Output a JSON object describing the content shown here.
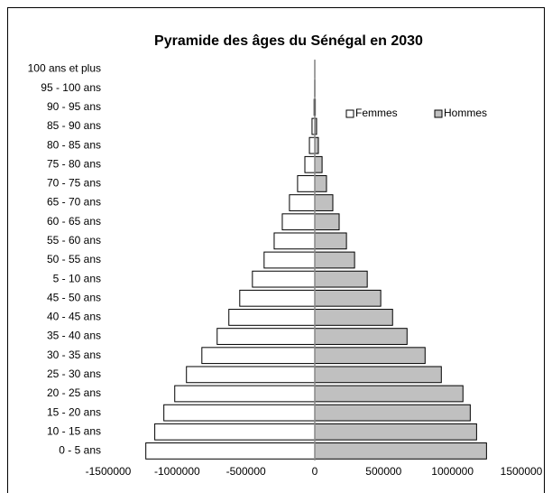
{
  "chart_data": {
    "type": "bar",
    "orientation": "horizontal",
    "title": "Pyramide des âges du Sénégal en 2030",
    "categories": [
      "0 - 5 ans",
      "10 - 15 ans",
      "15 - 20 ans",
      "20 - 25 ans",
      "25 - 30 ans",
      "30 - 35 ans",
      "35 - 40 ans",
      "40 - 45 ans",
      "45 - 50 ans",
      "5 - 10 ans",
      "50 - 55 ans",
      "55 - 60 ans",
      "60 - 65 ans",
      "65 - 70 ans",
      "70 - 75 ans",
      "75 - 80 ans",
      "80 - 85 ans",
      "85 - 90 ans",
      "90 - 95 ans",
      "95 - 100 ans",
      "100 ans et plus"
    ],
    "series": [
      {
        "name": "Femmes",
        "color": "#ffffff",
        "values": [
          -1227000,
          -1162000,
          -1096000,
          -1017000,
          -932000,
          -820000,
          -709000,
          -624000,
          -545000,
          -453000,
          -368000,
          -295000,
          -236000,
          -184000,
          -125000,
          -72000,
          -39000,
          -20000,
          -5000,
          -1000,
          -300
        ]
      },
      {
        "name": "Hommes",
        "color": "#c0c0c0",
        "values": [
          1247000,
          1175000,
          1129000,
          1076000,
          919000,
          801000,
          670000,
          565000,
          479000,
          381000,
          289000,
          230000,
          177000,
          131000,
          85000,
          53000,
          26000,
          13000,
          4000,
          1000,
          300
        ]
      }
    ],
    "xlim": [
      -1500000,
      1500000
    ],
    "xticks": [
      -1500000,
      -1000000,
      -500000,
      0,
      500000,
      1000000,
      1500000
    ],
    "grid": false,
    "legend": "upper right"
  }
}
